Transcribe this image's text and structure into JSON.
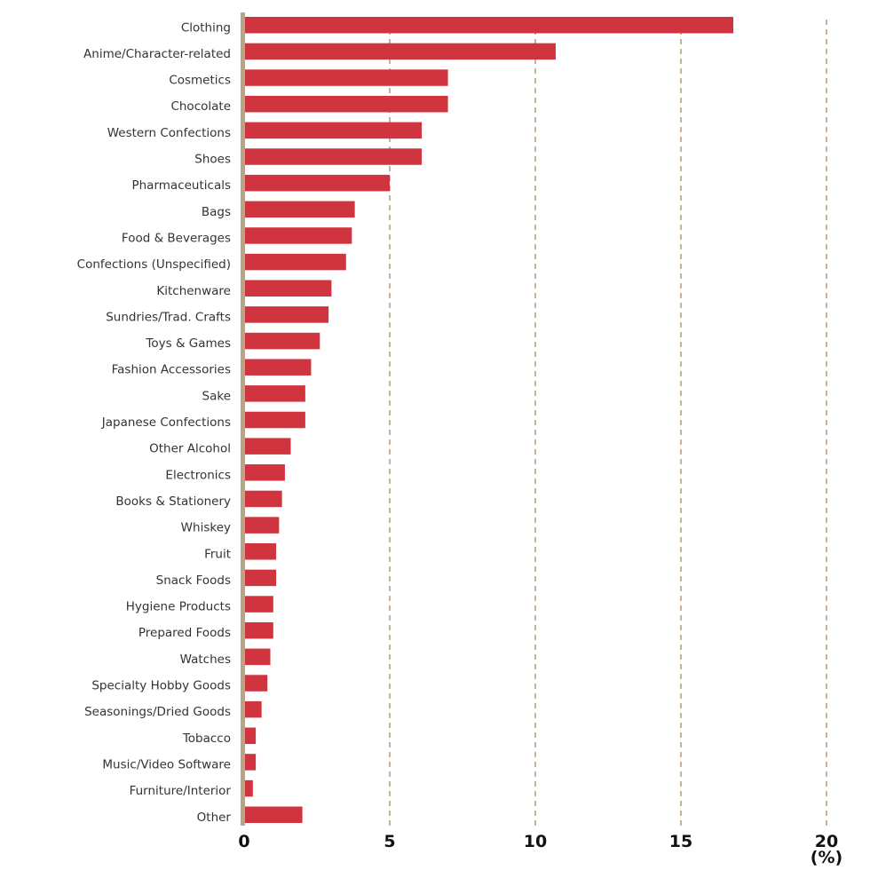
{
  "chart_data": {
    "type": "bar",
    "orientation": "horizontal",
    "categories": [
      "Clothing",
      "Anime/Character-related",
      "Cosmetics",
      "Chocolate",
      "Western Confections",
      "Shoes",
      "Pharmaceuticals",
      "Bags",
      "Food & Beverages",
      "Confections (Unspecified)",
      "Kitchenware",
      "Sundries/Trad. Crafts",
      "Toys & Games",
      "Fashion Accessories",
      "Sake",
      "Japanese Confections",
      "Other Alcohol",
      "Electronics",
      "Books & Stationery",
      "Whiskey",
      "Fruit",
      "Snack Foods",
      "Hygiene Products",
      "Prepared Foods",
      "Watches",
      "Specialty Hobby Goods",
      "Seasonings/Dried Goods",
      "Tobacco",
      "Music/Video Software",
      "Furniture/Interior",
      "Other"
    ],
    "values": [
      16.8,
      10.7,
      7.0,
      7.0,
      6.1,
      6.1,
      5.0,
      3.8,
      3.7,
      3.5,
      3.0,
      2.9,
      2.6,
      2.3,
      2.1,
      2.1,
      1.6,
      1.4,
      1.3,
      1.2,
      1.1,
      1.1,
      1.0,
      1.0,
      0.9,
      0.8,
      0.6,
      0.4,
      0.4,
      0.3,
      2.0
    ],
    "xlim": [
      0,
      20
    ],
    "xticks": [
      "0",
      "5",
      "10",
      "15",
      "20"
    ],
    "xunit": "(%)",
    "title": "",
    "xlabel": "",
    "ylabel": "",
    "grid": "vertical dashed",
    "legend": "none",
    "colors": {
      "bar": "#d0353f",
      "axis": "#b8a585",
      "grid": "#c7b497"
    }
  }
}
